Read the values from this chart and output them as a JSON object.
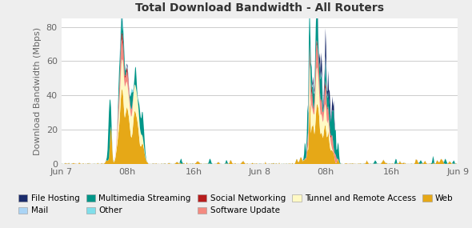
{
  "title": "Total Download Bandwidth - All Routers",
  "ylabel": "Download Bandwidth (Mbps)",
  "yticks": [
    0,
    20,
    40,
    60,
    80
  ],
  "ylim": [
    0,
    85
  ],
  "xtick_labels": [
    "Jun 7",
    "08h",
    "16h",
    "Jun 8",
    "08h",
    "16h",
    "Jun 9"
  ],
  "xtick_positions": [
    0,
    8,
    16,
    24,
    32,
    40,
    48
  ],
  "xlim": [
    0,
    48
  ],
  "bg_color": "#eeeeee",
  "plot_bg_color": "#ffffff",
  "grid_color": "#cccccc",
  "legend": [
    {
      "label": "File Hosting",
      "color": "#1a2b6b"
    },
    {
      "label": "Mail",
      "color": "#aad4f5"
    },
    {
      "label": "Multimedia Streaming",
      "color": "#009688"
    },
    {
      "label": "Other",
      "color": "#80deea"
    },
    {
      "label": "Social Networking",
      "color": "#b71c1c"
    },
    {
      "label": "Software Update",
      "color": "#f48a80"
    },
    {
      "label": "Tunnel and Remote Access",
      "color": "#fff9c4"
    },
    {
      "label": "Web",
      "color": "#e6a817"
    }
  ]
}
